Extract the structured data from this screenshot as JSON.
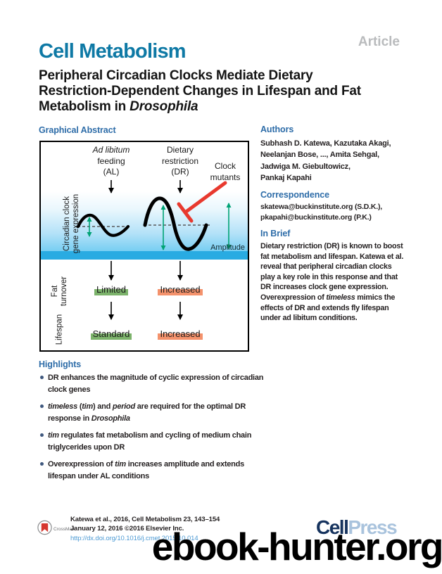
{
  "journal": {
    "name": "Cell Metabolism",
    "article_type": "Article"
  },
  "title": {
    "lines": [
      [
        {
          "t": "Peripheral Circadian Clocks Mediate Dietary"
        }
      ],
      [
        {
          "t": "Restriction-Dependent Changes in Lifespan and Fat"
        }
      ],
      [
        {
          "t": "Metabolism in "
        },
        {
          "t": "Drosophila",
          "i": true
        }
      ]
    ]
  },
  "graphical_abstract": {
    "heading": "Graphical Abstract",
    "al_label": {
      "lines": [
        [
          {
            "t": "Ad libitum",
            "i": true
          }
        ],
        [
          {
            "t": "feeding"
          }
        ],
        [
          {
            "t": "(AL)"
          }
        ]
      ]
    },
    "dr_label": {
      "lines": [
        [
          {
            "t": "Dietary"
          }
        ],
        [
          {
            "t": "restriction"
          }
        ],
        [
          {
            "t": "(DR)"
          }
        ]
      ]
    },
    "clock_mutants": {
      "lines": [
        [
          {
            "t": "Clock"
          }
        ],
        [
          {
            "t": "mutants"
          }
        ]
      ]
    },
    "y_axis": {
      "lines": [
        [
          {
            "t": "Circadian clock"
          }
        ],
        [
          {
            "t": "gene expression"
          }
        ]
      ]
    },
    "amplitude_label": "Amplitude",
    "fat_axis": {
      "lines": [
        [
          {
            "t": "Fat"
          }
        ],
        [
          {
            "t": "turnover"
          }
        ]
      ]
    },
    "lifespan_axis": "Lifespan",
    "fat_al": "Limited",
    "fat_dr": "Increased",
    "lifespan_al": "Standard",
    "lifespan_dr": "Increased",
    "colors": {
      "al_band": "#7cb36b",
      "dr_band": "#f4926c",
      "amplitude_arrow": "#00a375",
      "inhibition_line": "#e8392e",
      "expression_stripe": "#29abe2"
    }
  },
  "authors": {
    "heading": "Authors",
    "lines": [
      "Subhash D. Katewa, Kazutaka Akagi,",
      "Neelanjan Bose, ..., Amita Sehgal,",
      "Jadwiga M. Giebultowicz,",
      "Pankaj Kapahi"
    ]
  },
  "correspondence": {
    "heading": "Correspondence",
    "lines": [
      "skatewa@buckinstitute.org (S.D.K.),",
      "pkapahi@buckinstitute.org (P.K.)"
    ]
  },
  "in_brief": {
    "heading": "In Brief",
    "lines": [
      [
        {
          "t": "Dietary restriction (DR) is known to boost"
        }
      ],
      [
        {
          "t": "fat metabolism and lifespan. Katewa et al."
        }
      ],
      [
        {
          "t": "reveal that peripheral circadian clocks"
        }
      ],
      [
        {
          "t": "play a key role in this response and that"
        }
      ],
      [
        {
          "t": "DR increases clock gene expression."
        }
      ],
      [
        {
          "t": "Overexpression of "
        },
        {
          "t": "timeless",
          "i": true
        },
        {
          "t": " mimics the"
        }
      ],
      [
        {
          "t": "effects of DR and extends fly lifespan"
        }
      ],
      [
        {
          "t": "under ad libitum conditions."
        }
      ]
    ]
  },
  "highlights": {
    "heading": "Highlights",
    "items": [
      {
        "line1": [
          {
            "t": "DR enhances the magnitude of cyclic expression of circadian"
          }
        ],
        "line2": [
          {
            "t": "clock genes"
          }
        ]
      },
      {
        "line1": [
          {
            "t": "timeless",
            "i": true
          },
          {
            "t": " ("
          },
          {
            "t": "tim",
            "i": true
          },
          {
            "t": ") and "
          },
          {
            "t": "period",
            "i": true
          },
          {
            "t": " are required for the optimal DR"
          }
        ],
        "line2": [
          {
            "t": "response in "
          },
          {
            "t": "Drosophila",
            "i": true
          }
        ]
      },
      {
        "line1": [
          {
            "t": "tim",
            "i": true
          },
          {
            "t": " regulates fat metabolism and cycling of medium chain"
          }
        ],
        "line2": [
          {
            "t": "triglycerides upon DR"
          }
        ]
      },
      {
        "line1": [
          {
            "t": "Overexpression of "
          },
          {
            "t": "tim",
            "i": true
          },
          {
            "t": " increases amplitude and extends"
          }
        ],
        "line2": [
          {
            "t": "lifespan under AL conditions"
          }
        ]
      }
    ]
  },
  "footer": {
    "crossmark_label": "CrossMark",
    "citation_line1": "Katewa et al., 2016, Cell Metabolism 23, 143–154",
    "citation_line2": "January 12, 2016 ©2016 Elsevier Inc.",
    "doi": "http://dx.doi.org/10.1016/j.cmet.2015.10.014",
    "publisher": {
      "part1": "Cell",
      "part2": "Press"
    }
  },
  "watermark": "ebook-hunter.org"
}
